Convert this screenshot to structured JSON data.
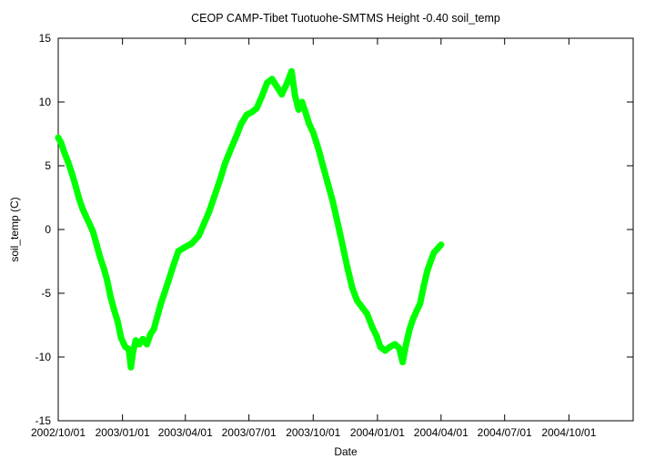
{
  "chart_data": {
    "type": "line",
    "title": "CEOP CAMP-Tibet Tuotuohe-SMTMS Height -0.40 soil_temp",
    "xlabel": "Date",
    "ylabel": "soil_temp (C)",
    "xlim": [
      "2002-10-01",
      "2005-01-01"
    ],
    "ylim": [
      -15,
      15
    ],
    "x_ticks": [
      "2002/10/01",
      "2003/01/01",
      "2003/04/01",
      "2003/07/01",
      "2003/10/01",
      "2004/01/01",
      "2004/04/01",
      "2004/07/01",
      "2004/10/01"
    ],
    "y_ticks": [
      -15,
      -10,
      -5,
      0,
      5,
      10,
      15
    ],
    "grid": false,
    "legend": false,
    "series": [
      {
        "color": "#00ff00",
        "points": [
          [
            "2002-10-01",
            7.2
          ],
          [
            "2002-10-05",
            6.8
          ],
          [
            "2002-10-10",
            6.0
          ],
          [
            "2002-10-15",
            5.3
          ],
          [
            "2002-10-20",
            4.5
          ],
          [
            "2002-10-25",
            3.6
          ],
          [
            "2002-10-31",
            2.4
          ],
          [
            "2002-11-05",
            1.6
          ],
          [
            "2002-11-10",
            1.0
          ],
          [
            "2002-11-15",
            0.4
          ],
          [
            "2002-11-20",
            -0.2
          ],
          [
            "2002-11-25",
            -1.2
          ],
          [
            "2002-11-30",
            -2.2
          ],
          [
            "2002-12-05",
            -3.0
          ],
          [
            "2002-12-10",
            -4.0
          ],
          [
            "2002-12-15",
            -5.3
          ],
          [
            "2002-12-20",
            -6.3
          ],
          [
            "2002-12-25",
            -7.2
          ],
          [
            "2002-12-30",
            -8.5
          ],
          [
            "2003-01-05",
            -9.2
          ],
          [
            "2003-01-10",
            -9.4
          ],
          [
            "2003-01-13",
            -10.8
          ],
          [
            "2003-01-16",
            -9.6
          ],
          [
            "2003-01-20",
            -8.7
          ],
          [
            "2003-01-25",
            -9.0
          ],
          [
            "2003-01-30",
            -8.6
          ],
          [
            "2003-02-05",
            -9.0
          ],
          [
            "2003-02-10",
            -8.2
          ],
          [
            "2003-02-15",
            -7.8
          ],
          [
            "2003-02-20",
            -6.8
          ],
          [
            "2003-02-25",
            -5.8
          ],
          [
            "2003-03-02",
            -5.0
          ],
          [
            "2003-03-08",
            -4.0
          ],
          [
            "2003-03-15",
            -2.8
          ],
          [
            "2003-03-22",
            -1.7
          ],
          [
            "2003-03-31",
            -1.4
          ],
          [
            "2003-04-10",
            -1.1
          ],
          [
            "2003-04-20",
            -0.5
          ],
          [
            "2003-04-28",
            0.5
          ],
          [
            "2003-05-05",
            1.4
          ],
          [
            "2003-05-12",
            2.5
          ],
          [
            "2003-05-20",
            3.8
          ],
          [
            "2003-05-28",
            5.2
          ],
          [
            "2003-06-05",
            6.3
          ],
          [
            "2003-06-12",
            7.2
          ],
          [
            "2003-06-20",
            8.3
          ],
          [
            "2003-06-28",
            9.0
          ],
          [
            "2003-07-05",
            9.2
          ],
          [
            "2003-07-12",
            9.5
          ],
          [
            "2003-07-20",
            10.5
          ],
          [
            "2003-07-27",
            11.5
          ],
          [
            "2003-08-03",
            11.8
          ],
          [
            "2003-08-10",
            11.2
          ],
          [
            "2003-08-17",
            10.6
          ],
          [
            "2003-08-24",
            11.4
          ],
          [
            "2003-08-31",
            12.4
          ],
          [
            "2003-09-05",
            10.5
          ],
          [
            "2003-09-10",
            9.4
          ],
          [
            "2003-09-15",
            10.0
          ],
          [
            "2003-09-20",
            9.2
          ],
          [
            "2003-09-25",
            8.3
          ],
          [
            "2003-10-01",
            7.6
          ],
          [
            "2003-10-08",
            6.4
          ],
          [
            "2003-10-15",
            5.0
          ],
          [
            "2003-10-22",
            3.6
          ],
          [
            "2003-10-29",
            2.2
          ],
          [
            "2003-11-05",
            0.5
          ],
          [
            "2003-11-12",
            -1.2
          ],
          [
            "2003-11-19",
            -3.0
          ],
          [
            "2003-11-26",
            -4.6
          ],
          [
            "2003-12-03",
            -5.6
          ],
          [
            "2003-12-10",
            -6.1
          ],
          [
            "2003-12-17",
            -6.6
          ],
          [
            "2003-12-24",
            -7.6
          ],
          [
            "2003-12-31",
            -8.4
          ],
          [
            "2004-01-05",
            -9.2
          ],
          [
            "2004-01-12",
            -9.5
          ],
          [
            "2004-01-19",
            -9.2
          ],
          [
            "2004-01-26",
            -9.0
          ],
          [
            "2004-02-01",
            -9.3
          ],
          [
            "2004-02-06",
            -10.4
          ],
          [
            "2004-02-11",
            -9.0
          ],
          [
            "2004-02-16",
            -7.8
          ],
          [
            "2004-02-21",
            -7.0
          ],
          [
            "2004-02-26",
            -6.4
          ],
          [
            "2004-03-02",
            -5.8
          ],
          [
            "2004-03-07",
            -4.5
          ],
          [
            "2004-03-12",
            -3.3
          ],
          [
            "2004-03-17",
            -2.5
          ],
          [
            "2004-03-22",
            -1.8
          ],
          [
            "2004-03-27",
            -1.5
          ],
          [
            "2004-04-01",
            -1.2
          ]
        ]
      }
    ]
  }
}
